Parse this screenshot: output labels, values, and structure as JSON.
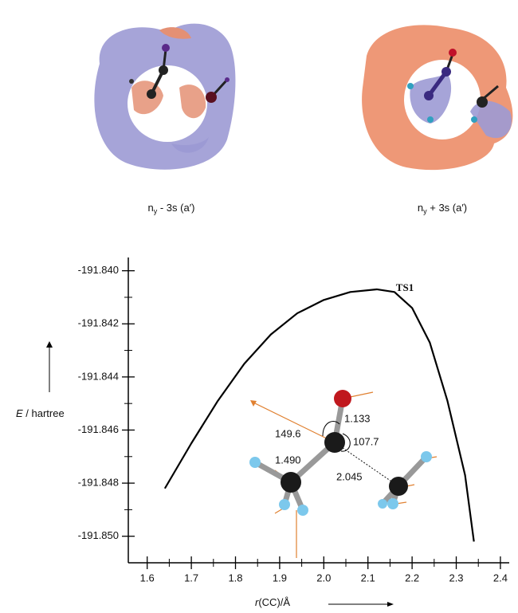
{
  "orbitals": [
    {
      "base": "n",
      "sub": "y",
      "rest": " - 3s (a′)"
    },
    {
      "base": "n",
      "sub": "y",
      "rest": " + 3s (a′)"
    }
  ],
  "chart_data": {
    "type": "line",
    "ylabel_symbol": "E",
    "ylabel_unit": " / hartree",
    "xlabel_symbol": "r",
    "xlabel_unit": "(CC)/Å",
    "annotation": "TS1",
    "structure_labels": [
      "149.6",
      "1.133",
      "107.7",
      "1.490",
      "2.045"
    ],
    "x": [
      1.64,
      1.7,
      1.76,
      1.82,
      1.88,
      1.94,
      2.0,
      2.06,
      2.12,
      2.16,
      2.2,
      2.24,
      2.28,
      2.32,
      2.34
    ],
    "values": [
      -191.8482,
      -191.8465,
      -191.8449,
      -191.8435,
      -191.8424,
      -191.8416,
      -191.8411,
      -191.8408,
      -191.8407,
      -191.8408,
      -191.8414,
      -191.8427,
      -191.8449,
      -191.8477,
      -191.8502
    ],
    "color": "#000000",
    "xlim": [
      1.55,
      2.42
    ],
    "ylim": [
      -191.851,
      -191.8395
    ],
    "xticks": [
      1.6,
      1.7,
      1.8,
      1.9,
      {
        "value": 2.0,
        "label": "2.0"
      },
      2.1,
      2.2,
      2.3,
      2.4
    ],
    "xminor_ticks": [
      1.65,
      1.75,
      1.85,
      1.95,
      2.05,
      2.15,
      2.25,
      2.35
    ],
    "yticks": [
      {
        "value": -191.84,
        "label": "-191.840"
      },
      {
        "value": -191.842,
        "label": "-191.842"
      },
      {
        "value": -191.844,
        "label": "-191.844"
      },
      {
        "value": -191.846,
        "label": "-191.846"
      },
      {
        "value": -191.848,
        "label": "-191.848"
      },
      {
        "value": -191.85,
        "label": "-191.850"
      }
    ],
    "yminor_ticks": [
      -191.841,
      -191.843,
      -191.845,
      -191.847,
      -191.849
    ]
  }
}
